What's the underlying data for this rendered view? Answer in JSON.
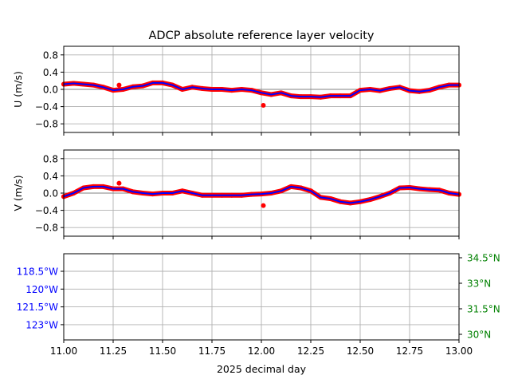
{
  "chart_data": {
    "title": "ADCP absolute reference layer velocity",
    "xlabel": "2025 decimal day",
    "xlim": [
      11.0,
      13.0
    ],
    "x_ticks": [
      "11.00",
      "11.25",
      "11.50",
      "11.75",
      "12.00",
      "12.25",
      "12.50",
      "12.75",
      "13.00"
    ],
    "colors": {
      "raw": "#ff0000",
      "smooth": "#0000ff",
      "lon": "#0000ff",
      "lat": "#008000",
      "grid": "#b0b0b0",
      "zero": "#808080"
    },
    "panels": [
      {
        "type": "scatter",
        "ylabel": "U (m/s)",
        "ylim": [
          -1.0,
          1.0
        ],
        "y_ticks": [
          "0.8",
          "0.4",
          "0.0",
          "−0.4",
          "−0.8"
        ],
        "y_tick_values": [
          0.8,
          0.4,
          0.0,
          -0.4,
          -0.8
        ],
        "series": [
          {
            "values": [
              [
                11.0,
                0.12
              ],
              [
                11.05,
                0.14
              ],
              [
                11.1,
                0.12
              ],
              [
                11.15,
                0.1
              ],
              [
                11.2,
                0.05
              ],
              [
                11.25,
                -0.02
              ],
              [
                11.3,
                0.0
              ],
              [
                11.35,
                0.06
              ],
              [
                11.4,
                0.08
              ],
              [
                11.45,
                0.15
              ],
              [
                11.5,
                0.15
              ],
              [
                11.55,
                0.1
              ],
              [
                11.6,
                0.0
              ],
              [
                11.65,
                0.05
              ],
              [
                11.7,
                0.02
              ],
              [
                11.75,
                0.0
              ],
              [
                11.8,
                0.0
              ],
              [
                11.85,
                -0.02
              ],
              [
                11.9,
                0.0
              ],
              [
                11.95,
                -0.02
              ],
              [
                12.0,
                -0.08
              ],
              [
                12.05,
                -0.12
              ],
              [
                12.1,
                -0.08
              ],
              [
                12.15,
                -0.15
              ],
              [
                12.2,
                -0.17
              ],
              [
                12.25,
                -0.17
              ],
              [
                12.3,
                -0.18
              ],
              [
                12.35,
                -0.15
              ],
              [
                12.4,
                -0.15
              ],
              [
                12.45,
                -0.15
              ],
              [
                12.5,
                -0.02
              ],
              [
                12.55,
                0.0
              ],
              [
                12.6,
                -0.03
              ],
              [
                12.65,
                0.02
              ],
              [
                12.7,
                0.05
              ],
              [
                12.75,
                -0.03
              ],
              [
                12.8,
                -0.05
              ],
              [
                12.85,
                -0.02
              ],
              [
                12.9,
                0.05
              ],
              [
                12.95,
                0.1
              ],
              [
                13.0,
                0.1
              ]
            ]
          },
          {
            "values": [
              [
                11.28,
                0.1
              ],
              [
                12.01,
                -0.37
              ]
            ]
          }
        ]
      },
      {
        "type": "scatter",
        "ylabel": "V (m/s)",
        "ylim": [
          -1.0,
          1.0
        ],
        "y_ticks": [
          "0.8",
          "0.4",
          "0.0",
          "−0.4",
          "−0.8"
        ],
        "y_tick_values": [
          0.8,
          0.4,
          0.0,
          -0.4,
          -0.8
        ],
        "series": [
          {
            "values": [
              [
                11.0,
                -0.08
              ],
              [
                11.05,
                0.0
              ],
              [
                11.1,
                0.12
              ],
              [
                11.15,
                0.15
              ],
              [
                11.2,
                0.15
              ],
              [
                11.25,
                0.1
              ],
              [
                11.3,
                0.1
              ],
              [
                11.35,
                0.03
              ],
              [
                11.4,
                0.0
              ],
              [
                11.45,
                -0.02
              ],
              [
                11.5,
                0.0
              ],
              [
                11.55,
                0.0
              ],
              [
                11.6,
                0.05
              ],
              [
                11.65,
                0.0
              ],
              [
                11.7,
                -0.05
              ],
              [
                11.75,
                -0.05
              ],
              [
                11.8,
                -0.05
              ],
              [
                11.85,
                -0.05
              ],
              [
                11.9,
                -0.05
              ],
              [
                11.95,
                -0.03
              ],
              [
                12.0,
                -0.02
              ],
              [
                12.05,
                0.0
              ],
              [
                12.1,
                0.05
              ],
              [
                12.15,
                0.15
              ],
              [
                12.2,
                0.12
              ],
              [
                12.25,
                0.05
              ],
              [
                12.3,
                -0.1
              ],
              [
                12.35,
                -0.13
              ],
              [
                12.4,
                -0.2
              ],
              [
                12.45,
                -0.23
              ],
              [
                12.5,
                -0.2
              ],
              [
                12.55,
                -0.15
              ],
              [
                12.6,
                -0.08
              ],
              [
                12.65,
                0.0
              ],
              [
                12.7,
                0.12
              ],
              [
                12.75,
                0.13
              ],
              [
                12.8,
                0.1
              ],
              [
                12.85,
                0.08
              ],
              [
                12.9,
                0.07
              ],
              [
                12.95,
                0.0
              ],
              [
                13.0,
                -0.03
              ]
            ]
          },
          {
            "values": [
              [
                11.28,
                0.23
              ],
              [
                12.01,
                -0.29
              ]
            ]
          }
        ]
      },
      {
        "type": "line",
        "y_ticks_left": [
          "118.5°W",
          "120°W",
          "121.5°W",
          "123°W"
        ],
        "y_ticks_right": [
          "34.5°N",
          "33°N",
          "31.5°N",
          "30°N"
        ]
      }
    ]
  }
}
